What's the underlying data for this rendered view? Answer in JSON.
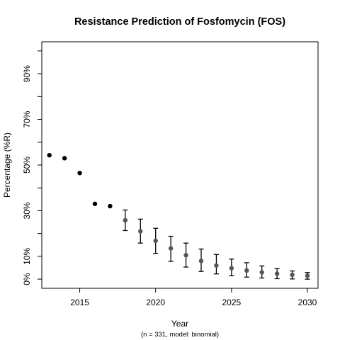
{
  "chart_data": {
    "type": "scatter",
    "title": "Resistance Prediction of Fosfomycin (FOS)",
    "xlabel": "Year",
    "ylabel": "Percentage (%R)",
    "caption": "(n = 331, model: binomial)",
    "xlim": [
      2012.5,
      2030.7
    ],
    "ylim": [
      -4,
      104
    ],
    "x_ticks": [
      {
        "value": 2015,
        "label": "2015"
      },
      {
        "value": 2020,
        "label": "2020"
      },
      {
        "value": 2025,
        "label": "2025"
      },
      {
        "value": 2030,
        "label": "2030"
      }
    ],
    "y_ticks": [
      {
        "value": 0,
        "label": "0%"
      },
      {
        "value": 10,
        "label": "10%"
      },
      {
        "value": 20,
        "label": ""
      },
      {
        "value": 30,
        "label": "30%"
      },
      {
        "value": 40,
        "label": ""
      },
      {
        "value": 50,
        "label": "50%"
      },
      {
        "value": 60,
        "label": ""
      },
      {
        "value": 70,
        "label": "70%"
      },
      {
        "value": 80,
        "label": ""
      },
      {
        "value": 90,
        "label": "90%"
      },
      {
        "value": 100,
        "label": ""
      }
    ],
    "grid": false,
    "series": [
      {
        "kind": "observed",
        "color": "#000000",
        "x": [
          2013,
          2014,
          2015,
          2016,
          2017
        ],
        "y": [
          54.3,
          53.0,
          46.5,
          33.0,
          32.0
        ]
      },
      {
        "kind": "predicted",
        "color": "#555555",
        "x": [
          2018,
          2019,
          2020,
          2021,
          2022,
          2023,
          2024,
          2025,
          2026,
          2027,
          2028,
          2029,
          2030
        ],
        "y": [
          25.8,
          21.0,
          16.8,
          13.5,
          10.5,
          8.0,
          6.0,
          4.8,
          3.8,
          3.0,
          2.4,
          1.9,
          1.5
        ],
        "lower": [
          21.3,
          15.8,
          11.3,
          7.8,
          5.3,
          3.4,
          2.3,
          1.5,
          0.9,
          0.5,
          0.2,
          0.1,
          0.0
        ],
        "upper": [
          30.3,
          26.3,
          22.3,
          18.8,
          15.8,
          13.2,
          10.8,
          8.8,
          7.2,
          5.8,
          4.6,
          3.6,
          2.9
        ]
      }
    ]
  }
}
